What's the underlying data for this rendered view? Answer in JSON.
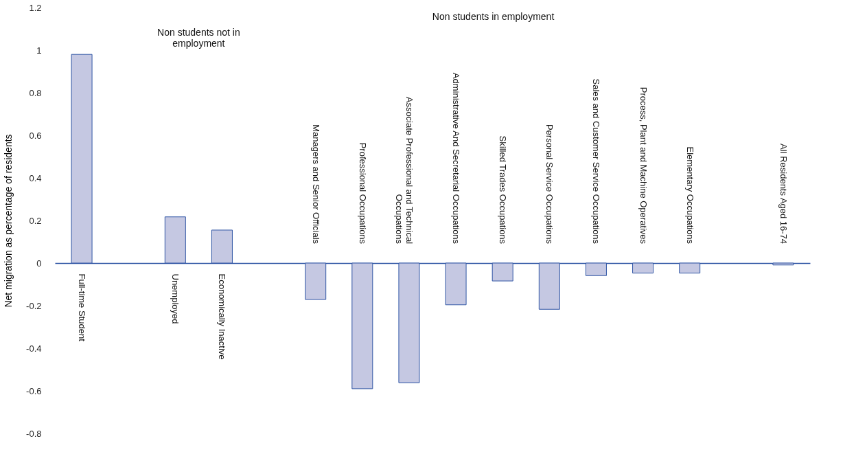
{
  "chart_data": {
    "type": "bar",
    "ylabel": "Net migration as percentage of residents",
    "categories": [
      "Full-time Student",
      null,
      "Unemployed",
      "Economically Inactive",
      null,
      "Managers and Senior Officials",
      "Professional Occupations",
      "Associate Professional and Technical\nOccupations",
      "Administrative And Secretarial Occupations",
      "Skilled Trades Occupations",
      "Personal Service Occupations",
      "Sales and Customer Service Occupations",
      "Process, Plant and Machine Operatives",
      "Elementary Occupations",
      null,
      "All Residents Aged 16-74"
    ],
    "values": [
      0.98,
      null,
      0.217,
      0.155,
      null,
      -0.171,
      -0.59,
      -0.562,
      -0.196,
      -0.084,
      -0.217,
      -0.059,
      -0.047,
      -0.047,
      null,
      -0.009
    ],
    "color": "#c5c8e2",
    "ylim": [
      -0.8,
      1.2
    ],
    "yticks": [
      {
        "value": -0.8,
        "label": "-0.8"
      },
      {
        "value": -0.6,
        "label": "-0.6"
      },
      {
        "value": -0.4,
        "label": "-0.4"
      },
      {
        "value": -0.2,
        "label": "-0.2"
      },
      0,
      {
        "value": 0.2,
        "label": "0.2"
      },
      {
        "value": 0.4,
        "label": "0.4"
      },
      {
        "value": 0.6,
        "label": "0.6"
      },
      {
        "value": 0.8,
        "label": "0.8"
      },
      1,
      {
        "value": 1.2,
        "label": "1.2"
      }
    ],
    "grid": false,
    "annotations": [
      "Non students not in\nemployment",
      "Non students in employment"
    ]
  }
}
